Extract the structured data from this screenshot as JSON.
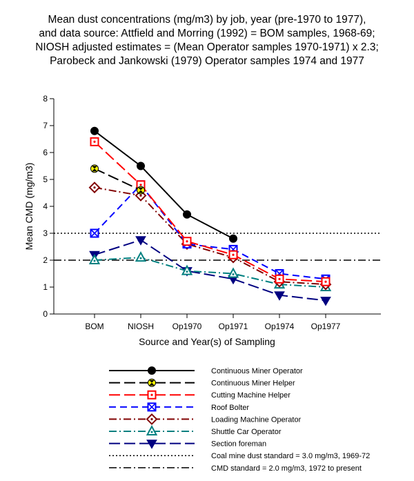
{
  "chart_data": {
    "type": "line",
    "title_lines": [
      "Mean dust concentrations (mg/m3) by job, year (pre-1970 to 1977),",
      "and data source:  Attfield and Morring (1992) = BOM samples, 1968-69;",
      "NIOSH adjusted estimates = (Mean Operator samples 1970-1971) x 2.3;",
      "Parobeck and Jankowski (1979) Operator samples 1974 and 1977"
    ],
    "xlabel": "Source and Year(s) of Sampling",
    "ylabel": "Mean CMD (mg/m3)",
    "categories": [
      "BOM",
      "NIOSH",
      "Op1970",
      "Op1971",
      "Op1974",
      "Op1977"
    ],
    "ylim": [
      0,
      8
    ],
    "yticks": [
      "0",
      "1",
      "2",
      "3",
      "4",
      "5",
      "6",
      "7",
      "8"
    ],
    "legend_position": "bottom",
    "series": [
      {
        "name": "Continuous Miner Operator",
        "values": [
          6.8,
          5.5,
          3.7,
          2.8,
          null,
          null
        ],
        "color": "#000000",
        "dash": "solid",
        "marker": "circle-filled"
      },
      {
        "name": "Continuous Miner Helper",
        "values": [
          5.4,
          4.6,
          null,
          null,
          null,
          null
        ],
        "color": "#000000",
        "dash": "longdash",
        "marker": "circle-yellow-hourglass"
      },
      {
        "name": "Cutting Machine Helper",
        "values": [
          6.4,
          4.8,
          2.7,
          2.2,
          1.3,
          1.2
        ],
        "color": "#ff0000",
        "dash": "longdash",
        "marker": "square-dot"
      },
      {
        "name": "Roof Bolter",
        "values": [
          3.0,
          4.8,
          2.6,
          2.4,
          1.5,
          1.3
        ],
        "color": "#0000ff",
        "dash": "dash",
        "marker": "square-x"
      },
      {
        "name": "Loading Machine Operator",
        "values": [
          4.7,
          4.4,
          2.6,
          2.1,
          1.2,
          1.1
        ],
        "color": "#800000",
        "dash": "dashdot",
        "marker": "diamond-dot"
      },
      {
        "name": "Shuttle Car Operator",
        "values": [
          2.0,
          2.1,
          1.6,
          1.5,
          1.1,
          1.0
        ],
        "color": "#008080",
        "dash": "dashdot",
        "marker": "triangle-up-dot"
      },
      {
        "name": "Section foreman",
        "values": [
          2.2,
          2.75,
          1.6,
          1.3,
          0.7,
          0.5
        ],
        "color": "#000080",
        "dash": "longdash",
        "marker": "triangle-down-filled"
      }
    ],
    "reference_lines": [
      {
        "name": "Coal mine dust standard = 3.0 mg/m3, 1969-72",
        "y": 3.0,
        "color": "#000000",
        "dash": "dotted"
      },
      {
        "name": "CMD standard = 2.0 mg/m3, 1972 to present",
        "y": 2.0,
        "color": "#000000",
        "dash": "dashdot"
      }
    ],
    "grid": false
  }
}
